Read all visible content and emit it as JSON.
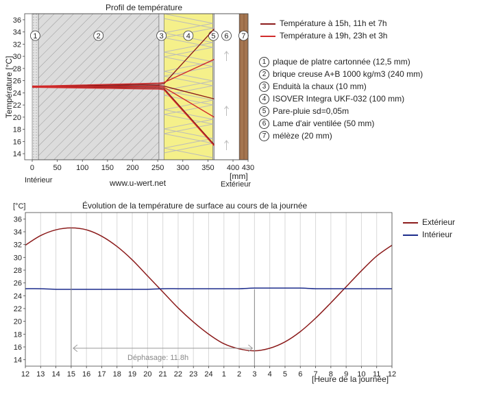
{
  "top_chart": {
    "title": "Profil de température",
    "ylabel": "Température [°C]",
    "x_unit": "[mm]",
    "left_label": "Intérieur",
    "right_label": "Extérieur",
    "watermark": "www.u-wert.net",
    "y_ticks": [
      "36",
      "34",
      "32",
      "30",
      "28",
      "26",
      "24",
      "22",
      "20",
      "18",
      "16",
      "14"
    ],
    "x_ticks": [
      "0",
      "50",
      "100",
      "150",
      "200",
      "250",
      "300",
      "350",
      "400",
      "430"
    ],
    "layer_numbers": [
      "1",
      "2",
      "3",
      "4",
      "5",
      "6",
      "7"
    ],
    "legend": [
      {
        "label": "Température à 15h, 11h et 7h",
        "color": "#8b1a1a"
      },
      {
        "label": "Température à 19h, 23h et 3h",
        "color": "#d12b2b"
      }
    ],
    "layers": [
      {
        "num": "1",
        "label": "plaque de platre cartonnée (12,5 mm)"
      },
      {
        "num": "2",
        "label": "brique creuse A+B 1000 kg/m3 (240 mm)"
      },
      {
        "num": "3",
        "label": "Enduità la chaux (10 mm)"
      },
      {
        "num": "4",
        "label": "ISOVER Integra UKF-032 (100 mm)"
      },
      {
        "num": "5",
        "label": "Pare-pluie sd=0,05m"
      },
      {
        "num": "6",
        "label": "Lame d'air ventilée (50 mm)"
      },
      {
        "num": "7",
        "label": "mélèze (20 mm)"
      }
    ]
  },
  "bottom_chart": {
    "title": "Évolution de la température de surface au cours de la journée",
    "ylabel": "[°C]",
    "xlabel": "[Heure de la journée]",
    "annotation": "Déphasage: 11.8h",
    "y_ticks": [
      "36",
      "34",
      "32",
      "30",
      "28",
      "26",
      "24",
      "22",
      "20",
      "18",
      "16",
      "14"
    ],
    "x_ticks": [
      "12",
      "13",
      "14",
      "15",
      "16",
      "17",
      "18",
      "19",
      "20",
      "21",
      "22",
      "23",
      "24",
      "1",
      "2",
      "3",
      "4",
      "5",
      "6",
      "7",
      "8",
      "9",
      "10",
      "11",
      "12"
    ],
    "legend": [
      {
        "label": "Extérieur",
        "color": "#8b1a1a"
      },
      {
        "label": "Intérieur",
        "color": "#1a2a8b"
      }
    ]
  },
  "chart_data": [
    {
      "type": "line",
      "title": "Profil de température",
      "xlabel": "[mm]",
      "ylabel": "Température [°C]",
      "xlim": [
        -15,
        430
      ],
      "ylim": [
        13,
        37
      ],
      "series": [
        {
          "name": "Température à 15h, 11h et 7h",
          "x": [
            0,
            12.5,
            252.5,
            262.5,
            362.5
          ],
          "y": [
            25.1,
            25.1,
            25.4,
            25.5,
            34.5
          ]
        },
        {
          "name": "Température à 15h, 11h et 7h",
          "x": [
            0,
            12.5,
            252.5,
            262.5,
            362.5
          ],
          "y": [
            25.0,
            25.0,
            25.2,
            25.1,
            23.0
          ]
        },
        {
          "name": "Température à 15h, 11h et 7h",
          "x": [
            0,
            12.5,
            252.5,
            262.5,
            362.5
          ],
          "y": [
            25.0,
            25.0,
            24.8,
            24.7,
            15.5
          ]
        },
        {
          "name": "Température à 19h, 23h et 3h",
          "x": [
            0,
            12.5,
            252.5,
            262.5,
            362.5
          ],
          "y": [
            25.1,
            25.1,
            25.6,
            25.7,
            29.5
          ]
        },
        {
          "name": "Température à 19h, 23h et 3h",
          "x": [
            0,
            12.5,
            252.5,
            262.5,
            362.5
          ],
          "y": [
            25.0,
            25.0,
            25.0,
            24.9,
            20.0
          ]
        },
        {
          "name": "Température à 19h, 23h et 3h",
          "x": [
            0,
            12.5,
            252.5,
            262.5,
            362.5
          ],
          "y": [
            24.9,
            24.9,
            24.6,
            24.5,
            15.3
          ]
        }
      ]
    },
    {
      "type": "line",
      "title": "Évolution de la température de surface au cours de la journée",
      "xlabel": "[Heure de la journée]",
      "ylabel": "[°C]",
      "categories": [
        "12",
        "13",
        "14",
        "15",
        "16",
        "17",
        "18",
        "19",
        "20",
        "21",
        "22",
        "23",
        "24",
        "1",
        "2",
        "3",
        "4",
        "5",
        "6",
        "7",
        "8",
        "9",
        "10",
        "11",
        "12"
      ],
      "ylim": [
        13,
        37
      ],
      "series": [
        {
          "name": "Extérieur",
          "values": [
            31.9,
            33.4,
            34.3,
            34.6,
            34.3,
            33.3,
            31.7,
            29.6,
            27.1,
            24.6,
            22.1,
            19.9,
            18.0,
            16.5,
            15.7,
            15.4,
            15.8,
            16.8,
            18.4,
            20.5,
            22.9,
            25.4,
            27.9,
            30.2,
            31.9
          ]
        },
        {
          "name": "Intérieur",
          "values": [
            25.1,
            25.1,
            25.0,
            25.0,
            25.0,
            25.0,
            25.0,
            25.0,
            25.0,
            25.1,
            25.1,
            25.1,
            25.1,
            25.1,
            25.1,
            25.2,
            25.2,
            25.2,
            25.2,
            25.1,
            25.1,
            25.1,
            25.1,
            25.1,
            25.1
          ]
        }
      ],
      "annotations": [
        {
          "text": "Déphasage: 11.8h",
          "from_hour": "15",
          "to_hour": "3"
        }
      ]
    }
  ]
}
